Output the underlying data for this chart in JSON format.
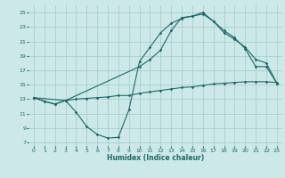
{
  "xlabel": "Humidex (Indice chaleur)",
  "bg_color": "#cce8e8",
  "grid_color": "#aacece",
  "line_color": "#1a6b6b",
  "xlim": [
    -0.5,
    23.5
  ],
  "ylim": [
    6.5,
    26.0
  ],
  "yticks": [
    7,
    9,
    11,
    13,
    15,
    17,
    19,
    21,
    23,
    25
  ],
  "xticks": [
    0,
    1,
    2,
    3,
    4,
    5,
    6,
    7,
    8,
    9,
    10,
    11,
    12,
    13,
    14,
    15,
    16,
    17,
    18,
    19,
    20,
    21,
    22,
    23
  ],
  "curve1_x": [
    0,
    1,
    2,
    3,
    4,
    5,
    6,
    7,
    8,
    9,
    10,
    11,
    12,
    13,
    14,
    15,
    16,
    17,
    18,
    19,
    20,
    21,
    22,
    23
  ],
  "curve1_y": [
    13.2,
    12.7,
    12.3,
    12.8,
    11.2,
    9.2,
    8.1,
    7.6,
    7.7,
    11.5,
    18.2,
    20.2,
    22.2,
    23.5,
    24.2,
    24.5,
    24.8,
    23.8,
    22.2,
    21.3,
    20.2,
    18.5,
    18.0,
    15.2
  ],
  "curve2_x": [
    0,
    1,
    2,
    3,
    4,
    5,
    6,
    7,
    8,
    9,
    10,
    11,
    12,
    13,
    14,
    15,
    16,
    17,
    18,
    19,
    20,
    21,
    22,
    23
  ],
  "curve2_y": [
    13.2,
    12.7,
    12.3,
    12.8,
    13.0,
    13.1,
    13.2,
    13.3,
    13.5,
    13.5,
    13.8,
    14.0,
    14.2,
    14.4,
    14.6,
    14.7,
    14.9,
    15.1,
    15.2,
    15.3,
    15.4,
    15.4,
    15.4,
    15.3
  ],
  "curve3_x": [
    0,
    3,
    10,
    11,
    12,
    13,
    14,
    15,
    16,
    17,
    18,
    19,
    20,
    21,
    22,
    23
  ],
  "curve3_y": [
    13.2,
    12.8,
    17.5,
    18.5,
    19.8,
    22.5,
    24.3,
    24.5,
    25.0,
    23.8,
    22.5,
    21.5,
    20.0,
    17.5,
    17.5,
    15.2
  ]
}
